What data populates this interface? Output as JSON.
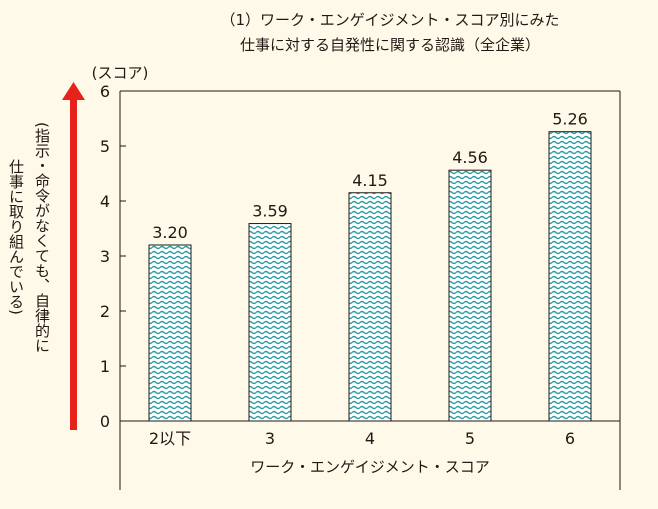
{
  "chart_data": {
    "type": "bar",
    "title": [
      "（1）ワーク・エンゲイジメント・スコア別にみた",
      "仕事に対する自発性に関する認識（全企業）"
    ],
    "unit_label": "(スコア)",
    "xlabel": "ワーク・エンゲイジメント・スコア",
    "ylabel": [
      "(指示・命令がなくても、自律的に",
      "仕事に取り組んでいる)"
    ],
    "categories": [
      "2以下",
      "3",
      "4",
      "5",
      "6"
    ],
    "values": [
      3.2,
      3.59,
      4.15,
      4.56,
      5.26
    ],
    "value_labels": [
      "3.20",
      "3.59",
      "4.15",
      "4.56",
      "5.26"
    ],
    "ylim": [
      0,
      6
    ],
    "yticks": [
      "0",
      "1",
      "2",
      "3",
      "4",
      "5",
      "6"
    ],
    "grid": false,
    "colors": {
      "bar_fill": "#ffffff",
      "bar_pattern": "#2a9aa3",
      "bar_stroke": "#1f1a17",
      "arrow": "#e6221b",
      "background": "#fef9e9"
    }
  }
}
